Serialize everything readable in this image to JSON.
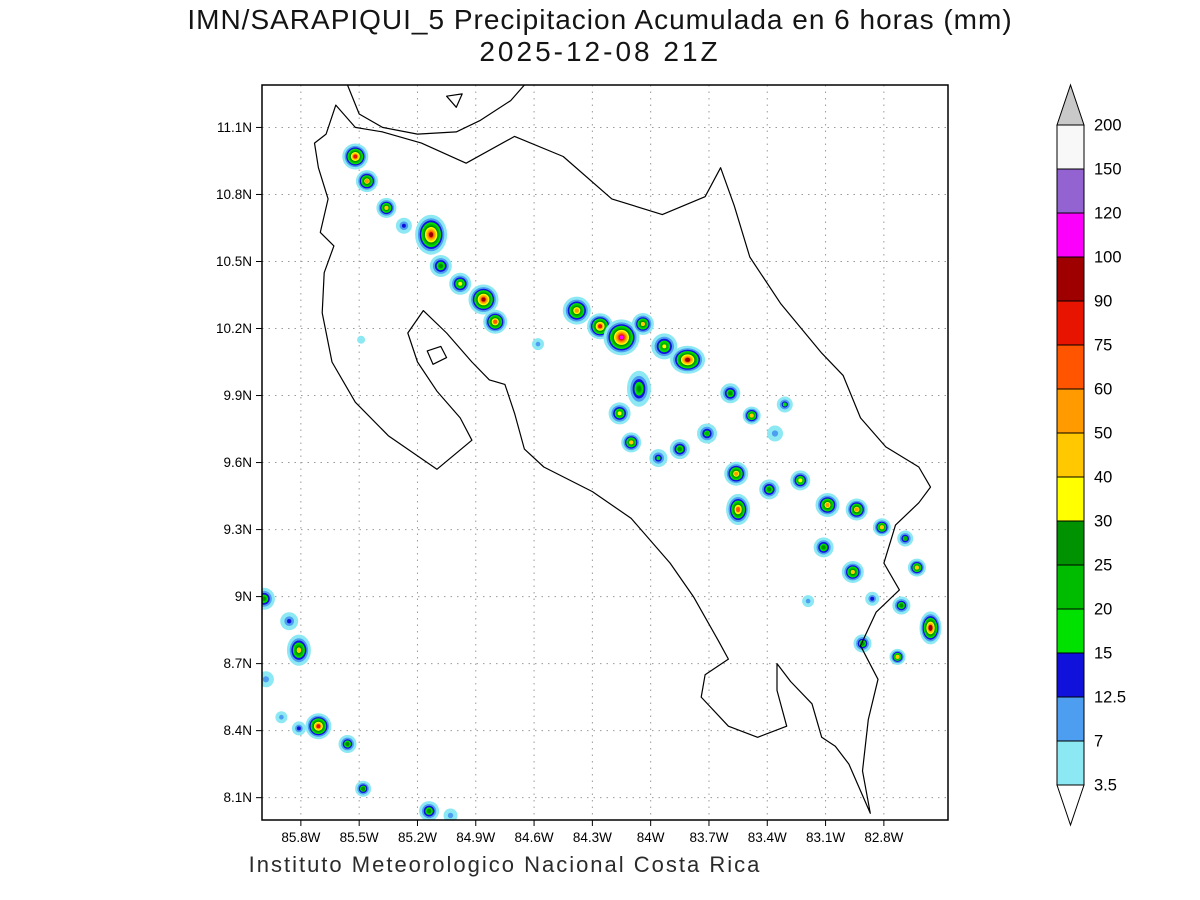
{
  "title": {
    "line1": "IMN/SARAPIQUI_5 Precipitacion Acumulada en 6 horas (mm)",
    "line2": "2025-12-08 21Z"
  },
  "footer": {
    "text": "Instituto Meteorologico Nacional Costa Rica"
  },
  "map": {
    "lat_ticks": [
      "11.1N",
      "10.8N",
      "10.5N",
      "10.2N",
      "9.9N",
      "9.6N",
      "9.3N",
      "9N",
      "8.7N",
      "8.4N",
      "8.1N"
    ],
    "lat_values": [
      11.1,
      10.8,
      10.5,
      10.2,
      9.9,
      9.6,
      9.3,
      9.0,
      8.7,
      8.4,
      8.1
    ],
    "lon_ticks": [
      "85.8W",
      "85.5W",
      "85.2W",
      "84.9W",
      "84.6W",
      "84.3W",
      "84W",
      "83.7W",
      "83.4W",
      "83.1W",
      "82.8W"
    ],
    "lon_values": [
      -85.8,
      -85.5,
      -85.2,
      -84.9,
      -84.6,
      -84.3,
      -84.0,
      -83.7,
      -83.4,
      -83.1,
      -82.8
    ],
    "extent": {
      "lon_min": -86.0,
      "lon_max": -82.47,
      "lat_min": 8.0,
      "lat_max": 11.29
    },
    "grid_color": "#9a9a9a",
    "coastline": [
      [
        -85.73,
        11.03
      ],
      [
        -85.67,
        11.07
      ],
      [
        -85.62,
        11.2
      ],
      [
        -85.52,
        11.1
      ],
      [
        -85.38,
        11.08
      ],
      [
        -85.18,
        11.03
      ],
      [
        -84.95,
        10.94
      ],
      [
        -84.7,
        11.06
      ],
      [
        -84.45,
        10.97
      ],
      [
        -84.2,
        10.78
      ],
      [
        -83.94,
        10.71
      ],
      [
        -83.72,
        10.79
      ],
      [
        -83.64,
        10.92
      ],
      [
        -83.57,
        10.75
      ],
      [
        -83.49,
        10.52
      ],
      [
        -83.33,
        10.31
      ],
      [
        -83.12,
        10.09
      ],
      [
        -83.01,
        9.99
      ],
      [
        -82.92,
        9.8
      ],
      [
        -82.79,
        9.67
      ],
      [
        -82.62,
        9.58
      ],
      [
        -82.56,
        9.49
      ],
      [
        -82.62,
        9.42
      ],
      [
        -82.74,
        9.32
      ],
      [
        -82.8,
        9.15
      ],
      [
        -82.72,
        9.03
      ],
      [
        -82.84,
        8.93
      ],
      [
        -82.92,
        8.78
      ],
      [
        -82.83,
        8.63
      ],
      [
        -82.88,
        8.45
      ],
      [
        -82.91,
        8.22
      ],
      [
        -82.87,
        8.03
      ],
      [
        -82.98,
        8.25
      ],
      [
        -83.05,
        8.33
      ],
      [
        -83.12,
        8.37
      ],
      [
        -83.17,
        8.52
      ],
      [
        -83.28,
        8.62
      ],
      [
        -83.35,
        8.7
      ],
      [
        -83.35,
        8.58
      ],
      [
        -83.3,
        8.42
      ],
      [
        -83.45,
        8.37
      ],
      [
        -83.6,
        8.42
      ],
      [
        -83.74,
        8.55
      ],
      [
        -83.72,
        8.65
      ],
      [
        -83.6,
        8.72
      ],
      [
        -83.65,
        8.8
      ],
      [
        -83.78,
        9.0
      ],
      [
        -83.9,
        9.15
      ],
      [
        -84.1,
        9.35
      ],
      [
        -84.3,
        9.47
      ],
      [
        -84.55,
        9.58
      ],
      [
        -84.65,
        9.66
      ],
      [
        -84.7,
        9.82
      ],
      [
        -84.75,
        9.95
      ],
      [
        -84.83,
        9.97
      ],
      [
        -84.92,
        10.05
      ],
      [
        -85.05,
        10.18
      ],
      [
        -85.17,
        10.28
      ],
      [
        -85.25,
        10.18
      ],
      [
        -85.2,
        10.05
      ],
      [
        -85.1,
        9.92
      ],
      [
        -84.98,
        9.8
      ],
      [
        -84.92,
        9.7
      ],
      [
        -85.1,
        9.57
      ],
      [
        -85.35,
        9.72
      ],
      [
        -85.52,
        9.87
      ],
      [
        -85.64,
        10.05
      ],
      [
        -85.69,
        10.27
      ],
      [
        -85.68,
        10.45
      ],
      [
        -85.63,
        10.57
      ],
      [
        -85.7,
        10.63
      ],
      [
        -85.66,
        10.78
      ],
      [
        -85.71,
        10.92
      ],
      [
        -85.73,
        11.03
      ]
    ],
    "water_lines": [
      {
        "name": "lake-nicaragua-shore",
        "closed": false,
        "points": [
          [
            -85.56,
            11.29
          ],
          [
            -85.5,
            11.16
          ],
          [
            -85.38,
            11.1
          ],
          [
            -85.2,
            11.07
          ],
          [
            -85.0,
            11.08
          ],
          [
            -84.88,
            11.13
          ],
          [
            -84.72,
            11.22
          ],
          [
            -84.65,
            11.29
          ]
        ]
      },
      {
        "name": "lake-island",
        "closed": true,
        "points": [
          [
            -85.05,
            11.24
          ],
          [
            -85.0,
            11.19
          ],
          [
            -84.97,
            11.25
          ]
        ]
      },
      {
        "name": "chira-island",
        "closed": true,
        "points": [
          [
            -85.15,
            10.1
          ],
          [
            -85.08,
            10.12
          ],
          [
            -85.05,
            10.07
          ],
          [
            -85.12,
            10.04
          ]
        ]
      }
    ]
  },
  "colorbar": {
    "levels": [
      3.5,
      7,
      12.5,
      15,
      20,
      25,
      30,
      40,
      50,
      60,
      75,
      90,
      100,
      120,
      150,
      200
    ],
    "labels": [
      "3.5",
      "7",
      "12.5",
      "15",
      "20",
      "25",
      "30",
      "40",
      "50",
      "60",
      "75",
      "90",
      "100",
      "120",
      "150",
      "200"
    ],
    "segment_colors": [
      "#8CE8F2",
      "#4D9DF0",
      "#1012DC",
      "#00E100",
      "#00BC00",
      "#009200",
      "#FFFF00",
      "#FFC800",
      "#FF9A00",
      "#FF5500",
      "#E61400",
      "#9E0000",
      "#FB00FB",
      "#9463D2",
      "#F8F8F8"
    ],
    "above_color": "#C9C9C9",
    "below_color": "#FFFFFF",
    "units": "mm"
  },
  "chart_data": {
    "type": "heatmap",
    "title": "IMN/SARAPIQUI_5 Precipitacion Acumulada en 6 horas (mm)",
    "valid_time": "2025-12-08 21Z",
    "units": "mm",
    "levels_mm": [
      3.5,
      7,
      12.5,
      15,
      20,
      25,
      30,
      40,
      50,
      60,
      75,
      90,
      100,
      120,
      150,
      200
    ],
    "cells": [
      {
        "lon": -85.52,
        "lat": 10.97,
        "peak": 75,
        "size": 13
      },
      {
        "lon": -85.46,
        "lat": 10.86,
        "peak": 50,
        "size": 11
      },
      {
        "lon": -85.36,
        "lat": 10.74,
        "peak": 40,
        "size": 10
      },
      {
        "lon": -85.27,
        "lat": 10.66,
        "peak": 12.5,
        "size": 8
      },
      {
        "lon": -85.13,
        "lat": 10.62,
        "peak": 90,
        "size": 16,
        "sy": 1.25
      },
      {
        "lon": -85.08,
        "lat": 10.48,
        "peak": 25,
        "size": 11
      },
      {
        "lon": -84.98,
        "lat": 10.4,
        "peak": 30,
        "size": 11
      },
      {
        "lon": -84.86,
        "lat": 10.33,
        "peak": 90,
        "size": 15
      },
      {
        "lon": -84.8,
        "lat": 10.23,
        "peak": 60,
        "size": 12
      },
      {
        "lon": -84.58,
        "lat": 10.13,
        "peak": 7,
        "size": 6
      },
      {
        "lon": -85.49,
        "lat": 10.15,
        "peak": 3.5,
        "size": 4
      },
      {
        "lon": -84.38,
        "lat": 10.28,
        "peak": 50,
        "size": 14
      },
      {
        "lon": -84.26,
        "lat": 10.21,
        "peak": 75,
        "size": 13
      },
      {
        "lon": -84.15,
        "lat": 10.16,
        "peak": 100,
        "size": 18
      },
      {
        "lon": -84.04,
        "lat": 10.22,
        "peak": 40,
        "size": 11
      },
      {
        "lon": -83.93,
        "lat": 10.12,
        "peak": 30,
        "size": 13
      },
      {
        "lon": -83.81,
        "lat": 10.06,
        "peak": 90,
        "size": 14,
        "sx": 1.25
      },
      {
        "lon": -84.06,
        "lat": 9.93,
        "peak": 25,
        "size": 12,
        "sy": 1.5
      },
      {
        "lon": -84.16,
        "lat": 9.82,
        "peak": 30,
        "size": 11
      },
      {
        "lon": -84.1,
        "lat": 9.69,
        "peak": 40,
        "size": 10
      },
      {
        "lon": -83.96,
        "lat": 9.62,
        "peak": 15,
        "size": 9
      },
      {
        "lon": -83.85,
        "lat": 9.66,
        "peak": 25,
        "size": 10
      },
      {
        "lon": -83.71,
        "lat": 9.73,
        "peak": 20,
        "size": 10
      },
      {
        "lon": -83.59,
        "lat": 9.91,
        "peak": 25,
        "size": 10
      },
      {
        "lon": -83.48,
        "lat": 9.81,
        "peak": 40,
        "size": 9
      },
      {
        "lon": -83.31,
        "lat": 9.86,
        "peak": 15,
        "size": 8
      },
      {
        "lon": -83.36,
        "lat": 9.73,
        "peak": 7,
        "size": 8
      },
      {
        "lon": -83.56,
        "lat": 9.55,
        "peak": 50,
        "size": 12
      },
      {
        "lon": -83.55,
        "lat": 9.39,
        "peak": 60,
        "size": 12,
        "sy": 1.3
      },
      {
        "lon": -83.39,
        "lat": 9.48,
        "peak": 25,
        "size": 10
      },
      {
        "lon": -83.23,
        "lat": 9.52,
        "peak": 30,
        "size": 10
      },
      {
        "lon": -83.09,
        "lat": 9.41,
        "peak": 50,
        "size": 12
      },
      {
        "lon": -82.94,
        "lat": 9.39,
        "peak": 50,
        "size": 11
      },
      {
        "lon": -82.81,
        "lat": 9.31,
        "peak": 40,
        "size": 9
      },
      {
        "lon": -83.11,
        "lat": 9.22,
        "peak": 25,
        "size": 10
      },
      {
        "lon": -82.96,
        "lat": 9.11,
        "peak": 40,
        "size": 11
      },
      {
        "lon": -82.69,
        "lat": 9.26,
        "peak": 20,
        "size": 8
      },
      {
        "lon": -82.63,
        "lat": 9.13,
        "peak": 40,
        "size": 9
      },
      {
        "lon": -82.86,
        "lat": 8.99,
        "peak": 12.5,
        "size": 7
      },
      {
        "lon": -82.71,
        "lat": 8.96,
        "peak": 25,
        "size": 9
      },
      {
        "lon": -82.56,
        "lat": 8.86,
        "peak": 90,
        "size": 11,
        "sy": 1.5
      },
      {
        "lon": -83.19,
        "lat": 8.98,
        "peak": 7,
        "size": 6
      },
      {
        "lon": -82.91,
        "lat": 8.79,
        "peak": 25,
        "size": 9
      },
      {
        "lon": -82.73,
        "lat": 8.73,
        "peak": 40,
        "size": 8
      },
      {
        "lon": -85.99,
        "lat": 8.99,
        "peak": 25,
        "size": 11
      },
      {
        "lon": -85.86,
        "lat": 8.89,
        "peak": 12.5,
        "size": 9
      },
      {
        "lon": -85.81,
        "lat": 8.76,
        "peak": 40,
        "size": 12,
        "sy": 1.3
      },
      {
        "lon": -85.98,
        "lat": 8.63,
        "peak": 7,
        "size": 8
      },
      {
        "lon": -85.9,
        "lat": 8.46,
        "peak": 7,
        "size": 6
      },
      {
        "lon": -85.71,
        "lat": 8.42,
        "peak": 75,
        "size": 13
      },
      {
        "lon": -85.81,
        "lat": 8.41,
        "peak": 12.5,
        "size": 7
      },
      {
        "lon": -85.56,
        "lat": 8.34,
        "peak": 25,
        "size": 9
      },
      {
        "lon": -85.48,
        "lat": 8.14,
        "peak": 25,
        "size": 8
      },
      {
        "lon": -85.14,
        "lat": 8.04,
        "peak": 25,
        "size": 10
      },
      {
        "lon": -85.03,
        "lat": 8.02,
        "peak": 7,
        "size": 7
      }
    ]
  }
}
